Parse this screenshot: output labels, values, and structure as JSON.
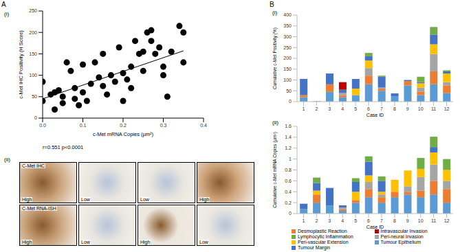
{
  "figure": {
    "panel_labels": [
      "A",
      "B"
    ]
  },
  "image_panels": {
    "subtitle": "(ii)",
    "rows": [
      {
        "title": "C-Met IHC",
        "labels": [
          "High",
          "Low",
          "Low",
          "High"
        ]
      },
      {
        "title": "C-Met RNA-ISH",
        "labels": [
          "High",
          "Low",
          "High",
          "Low"
        ]
      }
    ]
  },
  "chart_data": [
    {
      "type": "scatter",
      "subtitle": "(i)",
      "x_label": "c-Met mRNA Copies (μm²)",
      "y_label": "c-Met IHC Positivity (H Score)",
      "annotations": [
        "r=0.551 p<0.0001"
      ],
      "xlim": [
        0,
        0.4
      ],
      "xticks": [
        {
          "value": 0,
          "label": "0.0"
        },
        0.1,
        0.2,
        0.3,
        0.4
      ],
      "ylim": [
        0,
        250
      ],
      "yticks": [
        0,
        50,
        100,
        150,
        200,
        250
      ],
      "series": [
        {
          "type": "scatter",
          "marker": "circle",
          "color": "#000000",
          "x": [
            0,
            0,
            0.02,
            0.03,
            0.03,
            0.04,
            0.05,
            0.05,
            0.06,
            0.07,
            0.08,
            0.08,
            0.09,
            0.1,
            0.1,
            0.11,
            0.12,
            0.13,
            0.14,
            0.15,
            0.15,
            0.16,
            0.17,
            0.18,
            0.19,
            0.2,
            0.2,
            0.21,
            0.22,
            0.22,
            0.23,
            0.24,
            0.25,
            0.25,
            0.26,
            0.27,
            0.27,
            0.28,
            0.29,
            0.3,
            0.3,
            0.31,
            0.32,
            0.34,
            0.35,
            0.35
          ],
          "values": [
            85,
            40,
            55,
            60,
            20,
            65,
            50,
            35,
            130,
            110,
            70,
            45,
            30,
            125,
            60,
            40,
            80,
            130,
            95,
            75,
            150,
            55,
            100,
            85,
            165,
            105,
            40,
            90,
            120,
            70,
            180,
            150,
            155,
            110,
            200,
            180,
            205,
            150,
            165,
            100,
            120,
            50,
            155,
            215,
            200,
            130
          ]
        },
        {
          "type": "line",
          "line_style": "solid",
          "color": "#000000",
          "x": [
            0,
            0.35
          ],
          "values": [
            45,
            157
          ]
        }
      ]
    },
    {
      "type": "bar",
      "stacked": true,
      "subtitle": "(i)",
      "x_label": "Case ID",
      "y_label": "Cumulative c-Met Positivity (%)",
      "categories": [
        "1",
        "2",
        "3",
        "4",
        "5",
        "6",
        "7",
        "8",
        "9",
        "10",
        "11",
        "12"
      ],
      "ylim": [
        0,
        400
      ],
      "yticks": [
        0,
        50,
        100,
        150,
        200,
        250,
        300,
        350,
        400
      ],
      "series": [
        {
          "name": "Tumour Epithelium",
          "color": "#5B9BD5",
          "values": [
            20,
            2,
            45,
            20,
            30,
            80,
            50,
            25,
            75,
            30,
            80,
            40
          ]
        },
        {
          "name": "Desmoplastic Reaction",
          "color": "#ED7D31",
          "values": [
            10,
            0,
            35,
            10,
            0,
            40,
            10,
            0,
            20,
            15,
            60,
            35
          ]
        },
        {
          "name": "Peri-neural Invasion",
          "color": "#A5A5A5",
          "values": [
            0,
            0,
            0,
            10,
            0,
            35,
            5,
            0,
            0,
            20,
            80,
            15
          ]
        },
        {
          "name": "Peri-vascular Extension",
          "color": "#FFC000",
          "values": [
            0,
            0,
            0,
            0,
            30,
            35,
            0,
            0,
            0,
            20,
            45,
            40
          ]
        },
        {
          "name": "Tumour Margin",
          "color": "#4472C4",
          "values": [
            75,
            0,
            50,
            15,
            45,
            20,
            50,
            13,
            5,
            5,
            45,
            10
          ]
        },
        {
          "name": "Lymphocytic Inflammation",
          "color": "#70AD47",
          "values": [
            0,
            0,
            0,
            0,
            0,
            15,
            5,
            0,
            0,
            25,
            35,
            5
          ]
        },
        {
          "name": "Intravascular Invasion",
          "color": "#C00000",
          "values": [
            0,
            0,
            0,
            35,
            0,
            0,
            0,
            0,
            0,
            0,
            0,
            0
          ]
        }
      ]
    },
    {
      "type": "bar",
      "stacked": true,
      "legend": "bottom",
      "subtitle": "(ii)",
      "x_label": "Case ID",
      "y_label": "Cumulative c-Met mRNA Copies (μm²)",
      "categories": [
        "1",
        "2",
        "3",
        "4",
        "5",
        "6",
        "7",
        "8",
        "9",
        "10",
        "11",
        "12"
      ],
      "ylim": [
        0,
        1.6
      ],
      "yticks": [
        0,
        0.2,
        0.4,
        0.6,
        0.8,
        1,
        1.2,
        1.4,
        1.6
      ],
      "series": [
        {
          "name": "Tumour Epithelium",
          "color": "#5B9BD5",
          "values": [
            0.08,
            0.2,
            0.15,
            0.05,
            0.2,
            0.3,
            0.2,
            0.3,
            0.35,
            0.3,
            0.35,
            0.2
          ]
        },
        {
          "name": "Desmoplastic Reaction",
          "color": "#ED7D31",
          "values": [
            0,
            0.15,
            0,
            0.03,
            0.05,
            0.15,
            0.1,
            0.1,
            0.05,
            0.12,
            0.25,
            0.25
          ]
        },
        {
          "name": "Peri-neural Invasion",
          "color": "#A5A5A5",
          "values": [
            0,
            0,
            0,
            0.03,
            0,
            0.13,
            0.05,
            0,
            0.1,
            0.25,
            0.3,
            0.15
          ]
        },
        {
          "name": "Peri-vascular Extension",
          "color": "#FFC000",
          "values": [
            0,
            0.07,
            0,
            0,
            0.15,
            0.12,
            0.05,
            0.22,
            0.29,
            0.15,
            0.22,
            0.2
          ]
        },
        {
          "name": "Tumour Margin",
          "color": "#4472C4",
          "values": [
            0.1,
            0.14,
            0.32,
            0.04,
            0.18,
            0.25,
            0.2,
            0,
            0,
            0,
            0.1,
            0
          ]
        },
        {
          "name": "Lymphocytic Inflammation",
          "color": "#70AD47",
          "values": [
            0,
            0.1,
            0,
            0,
            0.07,
            0.1,
            0.08,
            0,
            0,
            0.2,
            0.19,
            0.2
          ]
        },
        {
          "name": "Intravascular Invasion",
          "color": "#C00000",
          "values": [
            0,
            0,
            0,
            0,
            0,
            0,
            0,
            0,
            0,
            0,
            0,
            0
          ]
        }
      ]
    }
  ]
}
